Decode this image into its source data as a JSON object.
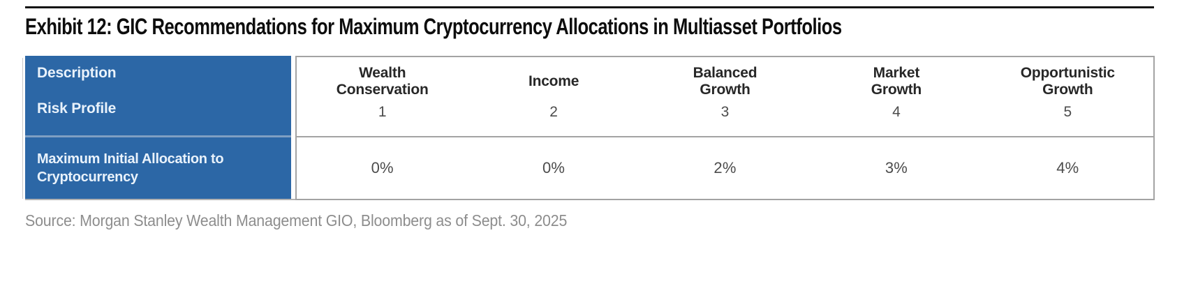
{
  "exhibit": {
    "title": "Exhibit 12: GIC Recommendations for Maximum Cryptocurrency Allocations in Multiasset Portfolios",
    "source": "Source: Morgan Stanley Wealth Management GIO, Bloomberg as of Sept. 30, 2025"
  },
  "table": {
    "row_labels": {
      "description": "Description",
      "risk_profile": "Risk Profile",
      "allocation": "Maximum Initial Allocation to\nCryptocurrency"
    },
    "columns": [
      {
        "name": "Wealth\nConservation",
        "risk_profile": "1",
        "max_allocation": "0%"
      },
      {
        "name": "Income",
        "risk_profile": "2",
        "max_allocation": "0%"
      },
      {
        "name": "Balanced\nGrowth",
        "risk_profile": "3",
        "max_allocation": "2%"
      },
      {
        "name": "Market\nGrowth",
        "risk_profile": "4",
        "max_allocation": "3%"
      },
      {
        "name": "Opportunistic\nGrowth",
        "risk_profile": "5",
        "max_allocation": "4%"
      }
    ],
    "colors": {
      "header_blue": "#2c67a6",
      "border_gray": "#a3a3a3",
      "blue_divider": "#7f9fc2"
    }
  }
}
